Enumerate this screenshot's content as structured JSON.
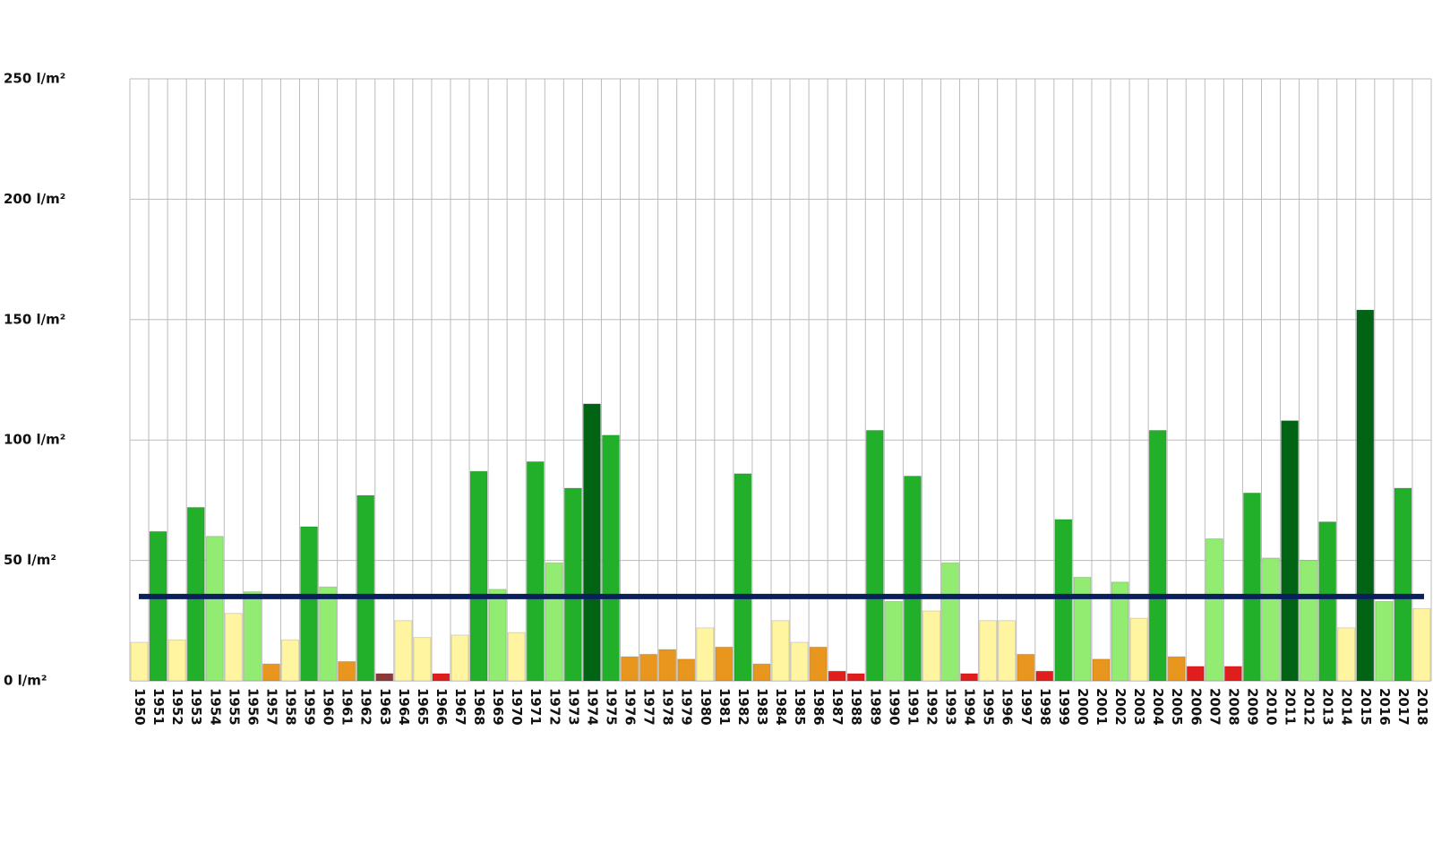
{
  "chart_data": {
    "type": "bar",
    "categories": [
      "1950",
      "1951",
      "1952",
      "1953",
      "1954",
      "1955",
      "1956",
      "1957",
      "1958",
      "1959",
      "1960",
      "1961",
      "1962",
      "1963",
      "1964",
      "1965",
      "1966",
      "1967",
      "1968",
      "1969",
      "1970",
      "1971",
      "1972",
      "1973",
      "1974",
      "1975",
      "1976",
      "1977",
      "1978",
      "1979",
      "1980",
      "1981",
      "1982",
      "1983",
      "1984",
      "1985",
      "1986",
      "1987",
      "1988",
      "1989",
      "1990",
      "1991",
      "1992",
      "1993",
      "1994",
      "1995",
      "1996",
      "1997",
      "1998",
      "1999",
      "2000",
      "2001",
      "2002",
      "2003",
      "2004",
      "2005",
      "2006",
      "2007",
      "2008",
      "2009",
      "2010",
      "2011",
      "2012",
      "2013",
      "2014",
      "2015",
      "2016",
      "2017",
      "2018"
    ],
    "values": [
      16,
      62,
      17,
      72,
      60,
      28,
      37,
      7,
      17,
      64,
      39,
      8,
      77,
      3,
      25,
      18,
      3,
      19,
      87,
      38,
      20,
      91,
      49,
      80,
      115,
      102,
      10,
      11,
      13,
      9,
      22,
      14,
      86,
      7,
      25,
      16,
      14,
      4,
      3,
      104,
      33,
      85,
      29,
      49,
      3,
      25,
      25,
      11,
      4,
      67,
      43,
      9,
      41,
      26,
      104,
      10,
      6,
      59,
      6,
      78,
      51,
      108,
      50,
      66,
      22,
      154,
      33,
      80,
      30
    ],
    "colors": [
      "#fff5a0",
      "#22b02a",
      "#fff5a0",
      "#22b02a",
      "#92ec72",
      "#fff5a0",
      "#92ec72",
      "#e8961e",
      "#fff5a0",
      "#22b02a",
      "#92ec72",
      "#e8961e",
      "#22b02a",
      "#8b3a3a",
      "#fff5a0",
      "#fff5a0",
      "#e01e1e",
      "#fff5a0",
      "#22b02a",
      "#92ec72",
      "#fff5a0",
      "#22b02a",
      "#92ec72",
      "#22b02a",
      "#006414",
      "#22b02a",
      "#e8961e",
      "#e8961e",
      "#e8961e",
      "#e8961e",
      "#fff5a0",
      "#e8961e",
      "#22b02a",
      "#e8961e",
      "#fff5a0",
      "#fff5a0",
      "#e8961e",
      "#e01e1e",
      "#e01e1e",
      "#22b02a",
      "#92ec72",
      "#22b02a",
      "#fff5a0",
      "#92ec72",
      "#e01e1e",
      "#fff5a0",
      "#fff5a0",
      "#e8961e",
      "#e01e1e",
      "#22b02a",
      "#92ec72",
      "#e8961e",
      "#92ec72",
      "#fff5a0",
      "#22b02a",
      "#e8961e",
      "#e01e1e",
      "#92ec72",
      "#e01e1e",
      "#22b02a",
      "#92ec72",
      "#006414",
      "#92ec72",
      "#22b02a",
      "#fff5a0",
      "#006414",
      "#92ec72",
      "#22b02a",
      "#fff5a0"
    ],
    "reference_line": {
      "value": 35,
      "color": "#0a1f5c"
    },
    "ylim": [
      0,
      250
    ],
    "yticks": [
      {
        "value": 0,
        "label": "0 l/m²"
      },
      {
        "value": 50,
        "label": "50 l/m²"
      },
      {
        "value": 100,
        "label": "100 l/m²"
      },
      {
        "value": 150,
        "label": "150 l/m²"
      },
      {
        "value": 200,
        "label": "200 l/m²"
      },
      {
        "value": 250,
        "label": "250 l/m²"
      }
    ],
    "grid": true
  }
}
